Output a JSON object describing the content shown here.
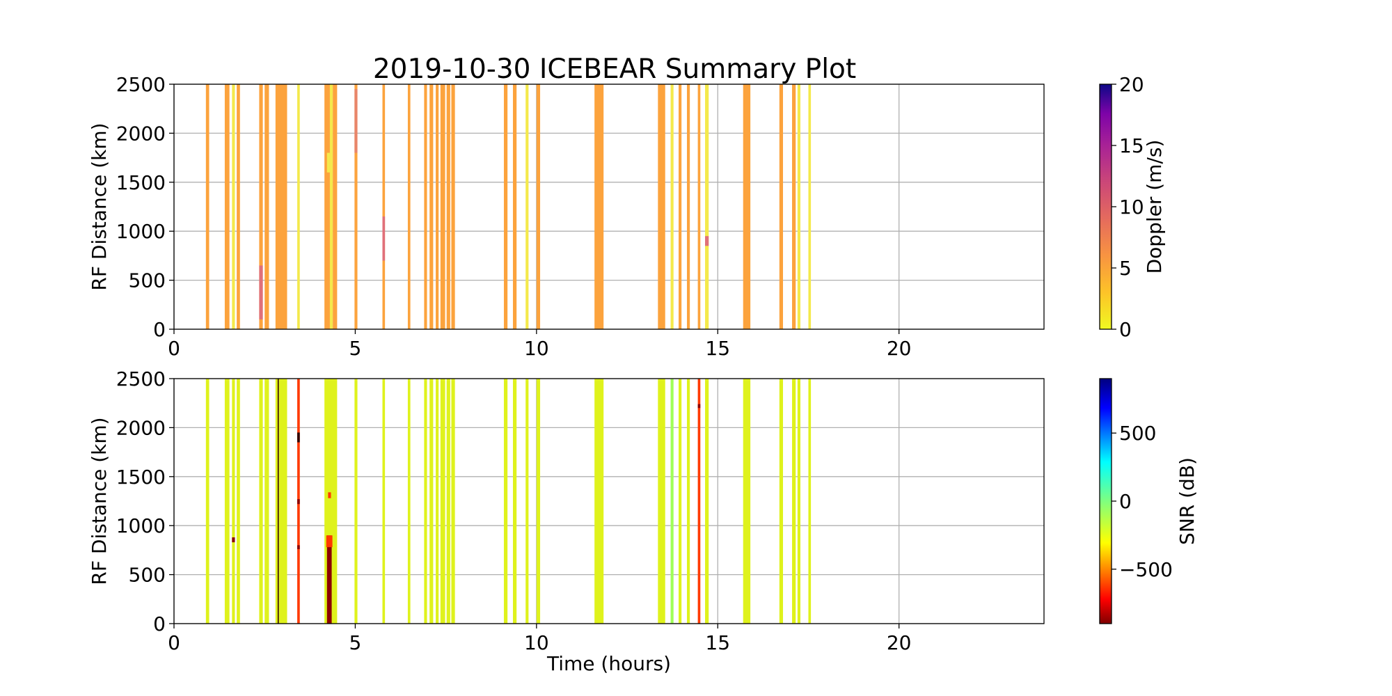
{
  "title": "2019-10-30 ICEBEAR Summary Plot",
  "colors": {
    "grid": "#b0b0b0",
    "axes": "#000000",
    "background": "#ffffff",
    "doppler_orange": "#fca33d",
    "doppler_yellow": "#f4e94b",
    "doppler_pink": "#e0707a",
    "snr_yellowgreen": "#dff21c",
    "snr_green": "#a0ff58",
    "snr_red": "#ff3a00",
    "snr_darkred": "#8b0000",
    "snr_black": "#300000"
  },
  "chart_data": [
    {
      "type": "heatmap",
      "panel": "doppler",
      "xlabel": "",
      "ylabel": "RF Distance (km)",
      "xlim": [
        0,
        24
      ],
      "ylim": [
        0,
        2500
      ],
      "xticks": [
        0,
        5,
        10,
        15,
        20
      ],
      "yticks": [
        0,
        500,
        1000,
        1500,
        2000,
        2500
      ],
      "grid": true,
      "colorbar": {
        "label": "Doppler (m/s)",
        "range": [
          0,
          20
        ],
        "ticks": [
          0,
          5,
          10,
          15,
          20
        ],
        "colormap": "plasma_r"
      },
      "bands": [
        {
          "t0": 0.88,
          "t1": 0.97,
          "color": "#fca33d"
        },
        {
          "t0": 1.4,
          "t1": 1.53,
          "color": "#fca33d"
        },
        {
          "t0": 1.6,
          "t1": 1.68,
          "color": "#f4e94b"
        },
        {
          "t0": 1.73,
          "t1": 1.82,
          "color": "#fca33d"
        },
        {
          "t0": 2.35,
          "t1": 2.45,
          "color": "#fca33d"
        },
        {
          "t0": 2.5,
          "t1": 2.62,
          "color": "#fca33d"
        },
        {
          "t0": 2.8,
          "t1": 3.12,
          "color": "#fca33d"
        },
        {
          "t0": 3.4,
          "t1": 3.47,
          "color": "#f4e94b"
        },
        {
          "t0": 4.15,
          "t1": 4.3,
          "color": "#fca33d"
        },
        {
          "t0": 4.3,
          "t1": 4.38,
          "color": "#f4e94b"
        },
        {
          "t0": 4.38,
          "t1": 4.5,
          "color": "#fca33d"
        },
        {
          "t0": 4.98,
          "t1": 5.06,
          "color": "#fca33d"
        },
        {
          "t0": 5.75,
          "t1": 5.82,
          "color": "#fca33d"
        },
        {
          "t0": 6.45,
          "t1": 6.52,
          "color": "#fca33d"
        },
        {
          "t0": 6.9,
          "t1": 6.98,
          "color": "#fca33d"
        },
        {
          "t0": 7.05,
          "t1": 7.15,
          "color": "#fca33d"
        },
        {
          "t0": 7.22,
          "t1": 7.3,
          "color": "#fca33d"
        },
        {
          "t0": 7.35,
          "t1": 7.48,
          "color": "#fca33d"
        },
        {
          "t0": 7.52,
          "t1": 7.62,
          "color": "#fca33d"
        },
        {
          "t0": 7.65,
          "t1": 7.75,
          "color": "#fca33d"
        },
        {
          "t0": 9.1,
          "t1": 9.2,
          "color": "#fca33d"
        },
        {
          "t0": 9.35,
          "t1": 9.45,
          "color": "#fca33d"
        },
        {
          "t0": 9.7,
          "t1": 9.78,
          "color": "#f4e94b"
        },
        {
          "t0": 10.0,
          "t1": 10.1,
          "color": "#fca33d"
        },
        {
          "t0": 11.6,
          "t1": 11.85,
          "color": "#fca33d"
        },
        {
          "t0": 13.35,
          "t1": 13.55,
          "color": "#fca33d"
        },
        {
          "t0": 13.7,
          "t1": 13.78,
          "color": "#f4e94b"
        },
        {
          "t0": 13.92,
          "t1": 14.0,
          "color": "#fca33d"
        },
        {
          "t0": 14.15,
          "t1": 14.23,
          "color": "#fca33d"
        },
        {
          "t0": 14.45,
          "t1": 14.52,
          "color": "#fca33d"
        },
        {
          "t0": 14.65,
          "t1": 14.75,
          "color": "#f4e94b"
        },
        {
          "t0": 15.7,
          "t1": 15.9,
          "color": "#fca33d"
        },
        {
          "t0": 16.7,
          "t1": 16.8,
          "color": "#fca33d"
        },
        {
          "t0": 17.05,
          "t1": 17.15,
          "color": "#fca33d"
        },
        {
          "t0": 17.2,
          "t1": 17.28,
          "color": "#f4e94b"
        },
        {
          "t0": 17.5,
          "t1": 17.57,
          "color": "#f4e94b"
        }
      ],
      "patches": [
        {
          "t0": 2.35,
          "t1": 2.45,
          "r0": 100,
          "r1": 650,
          "color": "#e0707a"
        },
        {
          "t0": 5.75,
          "t1": 5.82,
          "r0": 700,
          "r1": 1150,
          "color": "#e0707a"
        },
        {
          "t0": 4.98,
          "t1": 5.06,
          "r0": 1800,
          "r1": 2450,
          "color": "#e8856a"
        },
        {
          "t0": 14.65,
          "t1": 14.75,
          "r0": 850,
          "r1": 950,
          "color": "#e0707a"
        },
        {
          "t0": 4.22,
          "t1": 4.3,
          "r0": 1600,
          "r1": 1800,
          "color": "#f4e94b"
        }
      ]
    },
    {
      "type": "heatmap",
      "panel": "snr",
      "xlabel": "Time (hours)",
      "ylabel": "RF Distance (km)",
      "xlim": [
        0,
        24
      ],
      "ylim": [
        0,
        2500
      ],
      "xticks": [
        0,
        5,
        10,
        15,
        20
      ],
      "yticks": [
        0,
        500,
        1000,
        1500,
        2000,
        2500
      ],
      "grid": true,
      "colorbar": {
        "label": "SNR (dB)",
        "range": [
          -900,
          900
        ],
        "ticks": [
          -500,
          0,
          500
        ],
        "tick_labels": [
          "−500",
          "0",
          "500"
        ],
        "colormap": "jet_r"
      },
      "bands": [
        {
          "t0": 0.88,
          "t1": 0.97,
          "color": "#dff21c"
        },
        {
          "t0": 1.4,
          "t1": 1.53,
          "color": "#dff21c"
        },
        {
          "t0": 1.6,
          "t1": 1.68,
          "color": "#dff21c"
        },
        {
          "t0": 1.73,
          "t1": 1.82,
          "color": "#dff21c"
        },
        {
          "t0": 2.35,
          "t1": 2.45,
          "color": "#dff21c"
        },
        {
          "t0": 2.5,
          "t1": 2.62,
          "color": "#dff21c"
        },
        {
          "t0": 2.8,
          "t1": 3.12,
          "color": "#dff21c"
        },
        {
          "t0": 2.86,
          "t1": 2.89,
          "color": "#300000"
        },
        {
          "t0": 3.4,
          "t1": 3.47,
          "color": "#ff3a00"
        },
        {
          "t0": 4.15,
          "t1": 4.5,
          "color": "#dff21c"
        },
        {
          "t0": 4.98,
          "t1": 5.06,
          "color": "#dff21c"
        },
        {
          "t0": 5.75,
          "t1": 5.82,
          "color": "#dff21c"
        },
        {
          "t0": 6.45,
          "t1": 6.52,
          "color": "#dff21c"
        },
        {
          "t0": 6.9,
          "t1": 6.98,
          "color": "#dff21c"
        },
        {
          "t0": 7.05,
          "t1": 7.15,
          "color": "#dff21c"
        },
        {
          "t0": 7.22,
          "t1": 7.3,
          "color": "#dff21c"
        },
        {
          "t0": 7.35,
          "t1": 7.48,
          "color": "#dff21c"
        },
        {
          "t0": 7.52,
          "t1": 7.62,
          "color": "#dff21c"
        },
        {
          "t0": 7.65,
          "t1": 7.75,
          "color": "#dff21c"
        },
        {
          "t0": 9.1,
          "t1": 9.2,
          "color": "#dff21c"
        },
        {
          "t0": 9.35,
          "t1": 9.45,
          "color": "#dff21c"
        },
        {
          "t0": 9.7,
          "t1": 9.78,
          "color": "#dff21c"
        },
        {
          "t0": 10.0,
          "t1": 10.1,
          "color": "#dff21c"
        },
        {
          "t0": 11.6,
          "t1": 11.85,
          "color": "#dff21c"
        },
        {
          "t0": 13.35,
          "t1": 13.55,
          "color": "#dff21c"
        },
        {
          "t0": 13.7,
          "t1": 13.78,
          "color": "#a0ff58"
        },
        {
          "t0": 13.92,
          "t1": 14.0,
          "color": "#dff21c"
        },
        {
          "t0": 14.15,
          "t1": 14.23,
          "color": "#dff21c"
        },
        {
          "t0": 14.45,
          "t1": 14.52,
          "color": "#ff3a00"
        },
        {
          "t0": 14.65,
          "t1": 14.75,
          "color": "#dff21c"
        },
        {
          "t0": 15.7,
          "t1": 15.9,
          "color": "#dff21c"
        },
        {
          "t0": 16.7,
          "t1": 16.8,
          "color": "#dff21c"
        },
        {
          "t0": 17.05,
          "t1": 17.15,
          "color": "#dff21c"
        },
        {
          "t0": 17.2,
          "t1": 17.28,
          "color": "#dff21c"
        },
        {
          "t0": 17.5,
          "t1": 17.57,
          "color": "#dff21c"
        }
      ],
      "patches": [
        {
          "t0": 4.22,
          "t1": 4.35,
          "r0": 0,
          "r1": 900,
          "color": "#8b0000"
        },
        {
          "t0": 4.2,
          "t1": 4.37,
          "r0": 780,
          "r1": 900,
          "color": "#ff3a00"
        },
        {
          "t0": 4.25,
          "t1": 4.33,
          "r0": 1280,
          "r1": 1340,
          "color": "#ff3a00"
        },
        {
          "t0": 3.4,
          "t1": 3.47,
          "r0": 1850,
          "r1": 1950,
          "color": "#300000"
        },
        {
          "t0": 3.4,
          "t1": 3.47,
          "r0": 1220,
          "r1": 1270,
          "color": "#8b0000"
        },
        {
          "t0": 3.4,
          "t1": 3.47,
          "r0": 760,
          "r1": 800,
          "color": "#8b0000"
        },
        {
          "t0": 1.6,
          "t1": 1.68,
          "r0": 830,
          "r1": 880,
          "color": "#8b0000"
        },
        {
          "t0": 14.45,
          "t1": 14.52,
          "r0": 2200,
          "r1": 2240,
          "color": "#8b0000"
        }
      ]
    }
  ]
}
